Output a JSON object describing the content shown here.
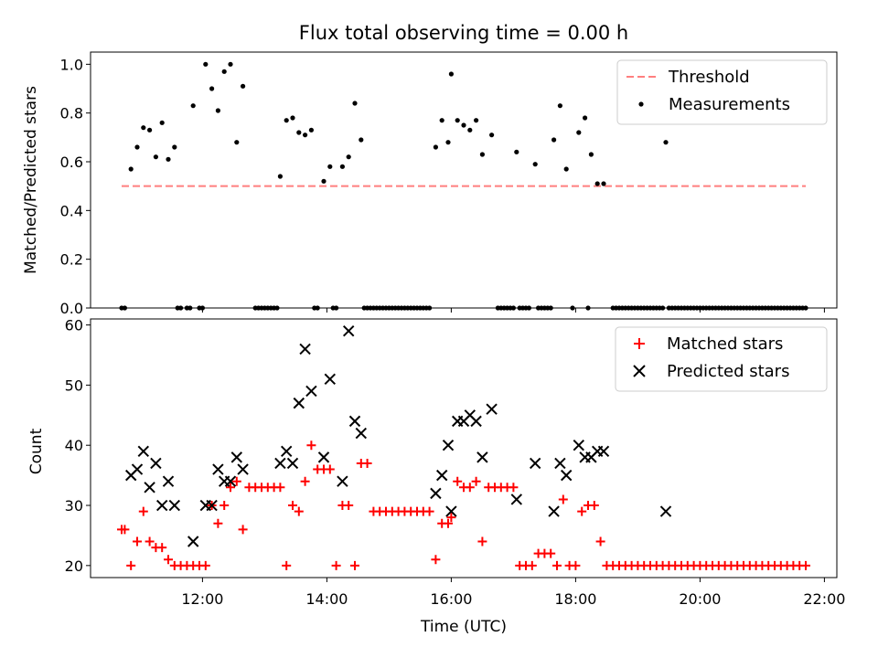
{
  "chart_data": [
    {
      "type": "scatter",
      "title": "Flux total observing time = 0.00 h",
      "xlabel": "",
      "ylabel": "Matched/Predicted stars",
      "xlim": [
        "10:12",
        "22:12"
      ],
      "ylim": [
        0,
        1.05
      ],
      "yticks": [
        0.0,
        0.2,
        0.4,
        0.6,
        0.8,
        1.0
      ],
      "ytick_labels": [
        "0.0",
        "0.2",
        "0.4",
        "0.6",
        "0.8",
        "1.0"
      ],
      "legend_position": "top-right",
      "grid": false,
      "series": [
        {
          "name": "Threshold",
          "kind": "dashed-line",
          "color": "#ff7f7f",
          "x": [
            "10:42",
            "21:42"
          ],
          "y": [
            0.5,
            0.5
          ]
        },
        {
          "name": "Measurements",
          "kind": "dot",
          "color": "#000000",
          "x": [
            "10:51",
            "10:57",
            "11:03",
            "11:09",
            "11:15",
            "11:21",
            "11:27",
            "11:33",
            "11:51",
            "12:03",
            "12:09",
            "12:15",
            "12:21",
            "12:27",
            "12:33",
            "12:39",
            "13:15",
            "13:21",
            "13:27",
            "13:33",
            "13:39",
            "13:45",
            "13:57",
            "14:03",
            "14:15",
            "14:21",
            "14:27",
            "14:33",
            "15:45",
            "15:51",
            "15:57",
            "16:00",
            "16:06",
            "16:12",
            "16:18",
            "16:24",
            "16:30",
            "16:39",
            "17:03",
            "17:21",
            "17:39",
            "17:45",
            "17:51",
            "18:03",
            "18:09",
            "18:15",
            "18:21",
            "18:27",
            "19:27"
          ],
          "y": [
            0.57,
            0.66,
            0.74,
            0.73,
            0.62,
            0.76,
            0.61,
            0.66,
            0.83,
            1.0,
            0.9,
            0.81,
            0.97,
            1.0,
            0.68,
            0.91,
            0.54,
            0.77,
            0.78,
            0.72,
            0.71,
            0.73,
            0.52,
            0.58,
            0.58,
            0.62,
            0.84,
            0.69,
            0.66,
            0.77,
            0.68,
            0.96,
            0.77,
            0.75,
            0.73,
            0.77,
            0.63,
            0.71,
            0.64,
            0.59,
            0.69,
            0.83,
            0.57,
            0.72,
            0.78,
            0.63,
            0.51,
            0.51,
            0.68
          ]
        },
        {
          "name": "",
          "kind": "dot",
          "color": "#000000",
          "x": [
            "10:42",
            "10:45",
            "11:36",
            "11:39",
            "11:45",
            "11:48",
            "11:57",
            "12:00",
            "12:51",
            "12:54",
            "12:57",
            "13:00",
            "13:03",
            "13:06",
            "13:09",
            "13:12",
            "13:48",
            "13:51",
            "14:06",
            "14:09",
            "14:36",
            "14:39",
            "14:42",
            "14:45",
            "14:48",
            "14:51",
            "14:54",
            "14:57",
            "15:00",
            "15:03",
            "15:06",
            "15:09",
            "15:12",
            "15:15",
            "15:18",
            "15:21",
            "15:24",
            "15:27",
            "15:30",
            "15:33",
            "15:36",
            "15:39",
            "16:45",
            "16:48",
            "16:51",
            "16:54",
            "16:57",
            "17:00",
            "17:06",
            "17:09",
            "17:12",
            "17:15",
            "17:24",
            "17:27",
            "17:30",
            "17:33",
            "17:36",
            "17:57",
            "18:12",
            "18:36",
            "18:39",
            "18:42",
            "18:45",
            "18:48",
            "18:51",
            "18:54",
            "18:57",
            "19:00",
            "19:03",
            "19:06",
            "19:09",
            "19:12",
            "19:15",
            "19:18",
            "19:21",
            "19:24",
            "19:30",
            "19:33",
            "19:36",
            "19:39",
            "19:42",
            "19:45",
            "19:48",
            "19:51",
            "19:54",
            "19:57",
            "20:00",
            "20:03",
            "20:06",
            "20:09",
            "20:12",
            "20:15",
            "20:18",
            "20:21",
            "20:24",
            "20:27",
            "20:30",
            "20:33",
            "20:36",
            "20:39",
            "20:42",
            "20:45",
            "20:48",
            "20:51",
            "20:54",
            "20:57",
            "21:00",
            "21:03",
            "21:06",
            "21:09",
            "21:12",
            "21:15",
            "21:18",
            "21:21",
            "21:24",
            "21:27",
            "21:30",
            "21:33",
            "21:36",
            "21:39",
            "21:42"
          ],
          "y_value": 0.0
        }
      ]
    },
    {
      "type": "scatter",
      "title": "",
      "xlabel": "Time (UTC)",
      "ylabel": "Count",
      "xlim": [
        "10:12",
        "22:12"
      ],
      "ylim": [
        18,
        61
      ],
      "yticks": [
        20,
        30,
        40,
        50,
        60
      ],
      "ytick_labels": [
        "20",
        "30",
        "40",
        "50",
        "60"
      ],
      "xticks": [
        "12:00",
        "14:00",
        "16:00",
        "18:00",
        "20:00",
        "22:00"
      ],
      "xtick_labels": [
        "12:00",
        "14:00",
        "16:00",
        "18:00",
        "20:00",
        "22:00"
      ],
      "legend_position": "top-right",
      "grid": false,
      "series": [
        {
          "name": "Matched stars",
          "kind": "plus",
          "color": "#ff0000",
          "x": [
            "10:42",
            "10:45",
            "10:51",
            "10:57",
            "11:03",
            "11:09",
            "11:15",
            "11:21",
            "11:27",
            "11:33",
            "11:39",
            "11:45",
            "11:51",
            "11:57",
            "12:03",
            "12:09",
            "12:15",
            "12:21",
            "12:27",
            "12:33",
            "12:39",
            "12:45",
            "12:51",
            "12:57",
            "13:03",
            "13:09",
            "13:15",
            "13:21",
            "13:27",
            "13:33",
            "13:39",
            "13:45",
            "13:51",
            "13:57",
            "14:03",
            "14:09",
            "14:15",
            "14:21",
            "14:27",
            "14:33",
            "14:39",
            "14:45",
            "14:51",
            "14:57",
            "15:03",
            "15:09",
            "15:15",
            "15:21",
            "15:27",
            "15:33",
            "15:39",
            "15:45",
            "15:51",
            "15:57",
            "16:00",
            "16:06",
            "16:12",
            "16:18",
            "16:24",
            "16:30",
            "16:36",
            "16:42",
            "16:48",
            "16:54",
            "17:00",
            "17:06",
            "17:12",
            "17:18",
            "17:24",
            "17:30",
            "17:36",
            "17:42",
            "17:48",
            "17:54",
            "18:00",
            "18:06",
            "18:12",
            "18:18",
            "18:24",
            "18:30",
            "18:36",
            "18:42",
            "18:48",
            "18:54",
            "19:00",
            "19:06",
            "19:12",
            "19:18",
            "19:24",
            "19:30",
            "19:36",
            "19:42",
            "19:48",
            "19:54",
            "20:00",
            "20:06",
            "20:12",
            "20:18",
            "20:24",
            "20:30",
            "20:36",
            "20:42",
            "20:48",
            "20:54",
            "21:00",
            "21:06",
            "21:12",
            "21:18",
            "21:24",
            "21:30",
            "21:36",
            "21:42"
          ],
          "y": [
            26,
            26,
            20,
            24,
            29,
            24,
            23,
            23,
            21,
            20,
            20,
            20,
            20,
            20,
            20,
            30,
            27,
            30,
            33,
            34,
            26,
            33,
            33,
            33,
            33,
            33,
            33,
            20,
            30,
            29,
            34,
            40,
            36,
            36,
            36,
            20,
            30,
            30,
            20,
            37,
            37,
            29,
            29,
            29,
            29,
            29,
            29,
            29,
            29,
            29,
            29,
            21,
            27,
            27,
            28,
            34,
            33,
            33,
            34,
            24,
            33,
            33,
            33,
            33,
            33,
            20,
            20,
            20,
            22,
            22,
            22,
            20,
            31,
            20,
            20,
            29,
            30,
            30,
            24,
            20,
            20,
            20,
            20,
            20,
            20,
            20,
            20,
            20,
            20,
            20,
            20,
            20,
            20,
            20,
            20,
            20,
            20,
            20,
            20,
            20,
            20,
            20,
            20,
            20,
            20,
            20,
            20,
            20,
            20,
            20,
            20,
            20
          ]
        },
        {
          "name": "Predicted stars",
          "kind": "x",
          "color": "#000000",
          "x": [
            "10:51",
            "10:57",
            "11:03",
            "11:09",
            "11:15",
            "11:21",
            "11:27",
            "11:33",
            "11:51",
            "12:03",
            "12:09",
            "12:15",
            "12:21",
            "12:27",
            "12:33",
            "12:39",
            "13:15",
            "13:21",
            "13:27",
            "13:33",
            "13:39",
            "13:45",
            "13:57",
            "14:03",
            "14:15",
            "14:21",
            "14:27",
            "14:33",
            "15:45",
            "15:51",
            "15:57",
            "16:00",
            "16:06",
            "16:12",
            "16:18",
            "16:24",
            "16:30",
            "16:39",
            "17:03",
            "17:21",
            "17:39",
            "17:45",
            "17:51",
            "18:03",
            "18:09",
            "18:15",
            "18:21",
            "18:27",
            "19:27"
          ],
          "y": [
            35,
            36,
            39,
            33,
            37,
            30,
            34,
            30,
            24,
            30,
            30,
            36,
            34,
            34,
            38,
            36,
            37,
            39,
            37,
            47,
            56,
            49,
            38,
            51,
            34,
            59,
            44,
            42,
            32,
            35,
            40,
            29,
            44,
            44,
            45,
            44,
            38,
            46,
            31,
            37,
            29,
            37,
            35,
            40,
            38,
            38,
            39,
            39,
            29
          ]
        }
      ]
    }
  ]
}
